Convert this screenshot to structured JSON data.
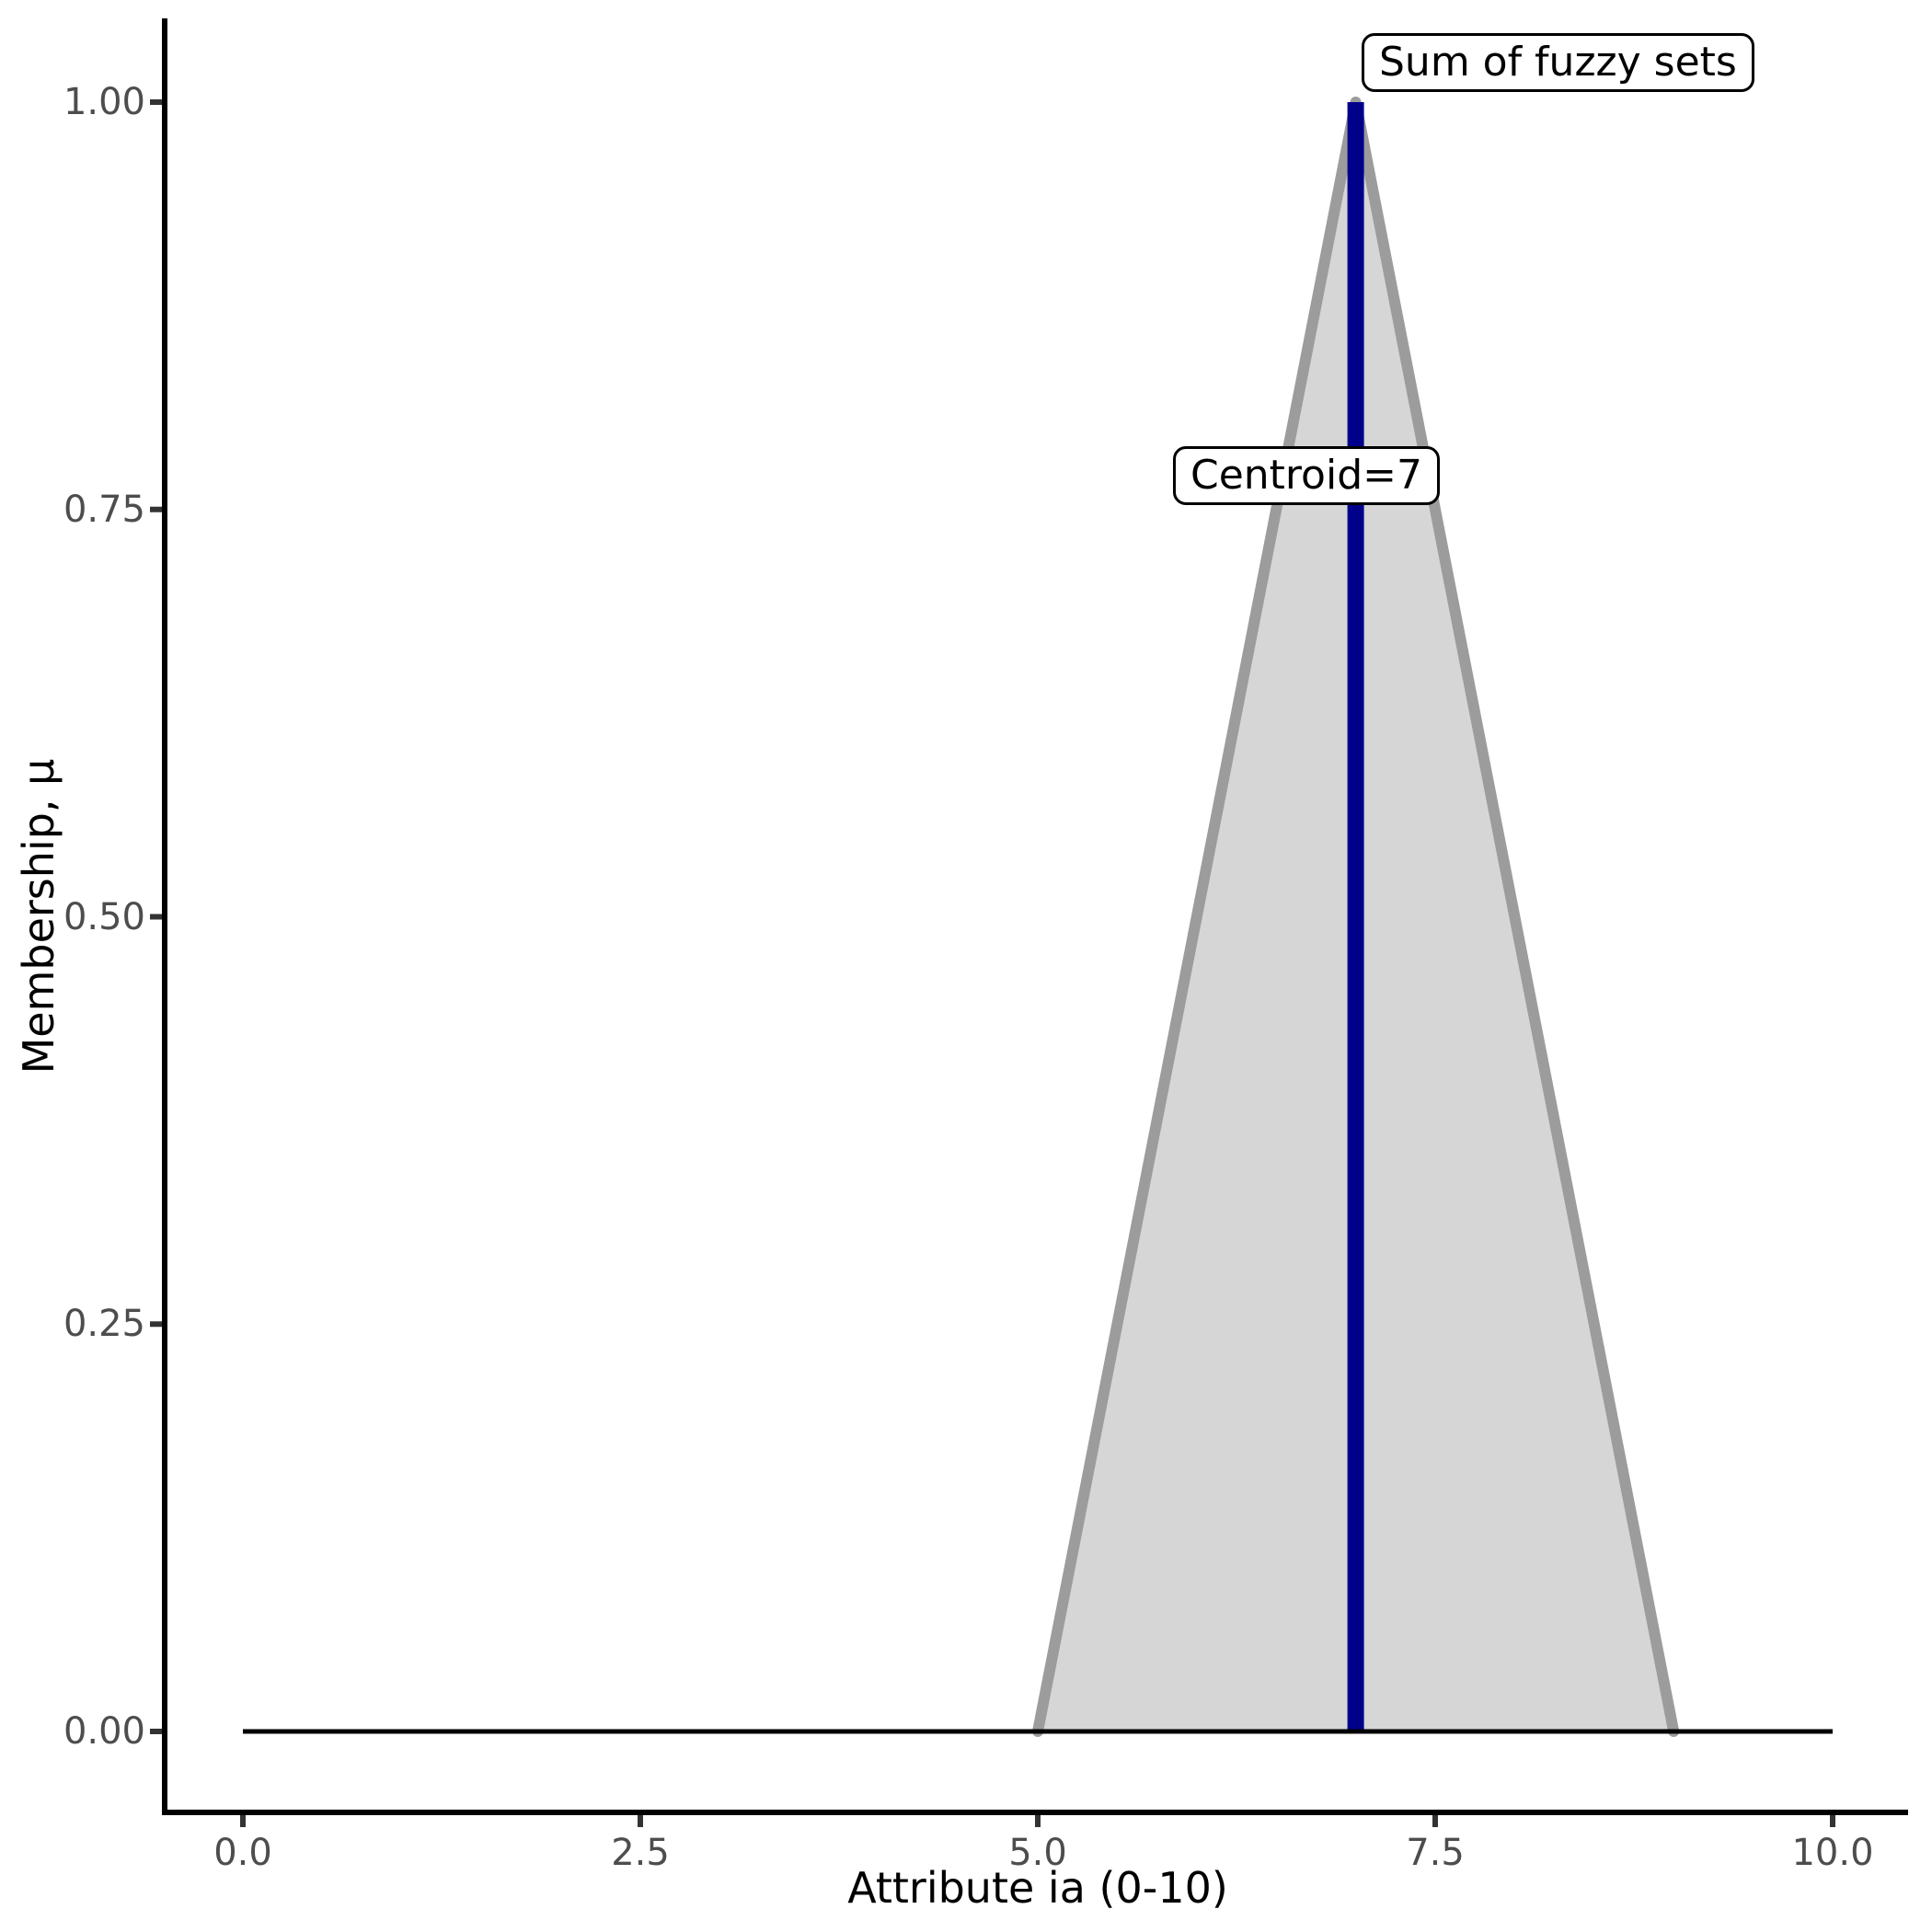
{
  "chart_data": {
    "type": "area",
    "title": "",
    "xlabel": "Attribute ia (0-10)",
    "ylabel": "Membership, μ",
    "xlim": [
      0,
      10
    ],
    "ylim": [
      0,
      1
    ],
    "grid": false,
    "legend": false,
    "x_ticks": {
      "values": [
        0,
        2.5,
        5,
        7.5,
        10
      ],
      "labels": [
        "0.0",
        "2.5",
        "5.0",
        "7.5",
        "10.0"
      ]
    },
    "y_ticks": {
      "values": [
        0,
        0.25,
        0.5,
        0.75,
        1
      ],
      "labels": [
        "0.00",
        "0.25",
        "0.50",
        "0.75",
        "1.00"
      ]
    },
    "series": [
      {
        "name": "sum-of-fuzzy-sets",
        "type": "area",
        "points": [
          [
            5,
            0
          ],
          [
            7,
            1
          ],
          [
            9,
            0
          ]
        ],
        "fill": "#d6d6d6",
        "stroke": "#9c9c9c",
        "stroke_width": 12
      },
      {
        "name": "zero-membership-baseline",
        "type": "line",
        "points": [
          [
            0,
            0
          ],
          [
            10,
            0
          ]
        ],
        "stroke": "#000000",
        "stroke_width": 5
      },
      {
        "name": "centroid-line",
        "type": "line",
        "points": [
          [
            7,
            0
          ],
          [
            7,
            1
          ]
        ],
        "stroke": "#00008b",
        "stroke_width": 18
      }
    ],
    "annotations": [
      {
        "text": "Sum of fuzzy sets",
        "x": 7,
        "y": 1.0
      },
      {
        "text": "Centroid=7",
        "x": 7,
        "y": 0.77
      }
    ],
    "centroid_value": 7
  },
  "style": {
    "axis_color": "#000000",
    "tick_color": "#333333",
    "tick_label_color": "#4d4d4d",
    "area_fill": "#d6d6d6",
    "area_stroke": "#9c9c9c",
    "centroid_color": "#00008b",
    "background": "#ffffff"
  }
}
